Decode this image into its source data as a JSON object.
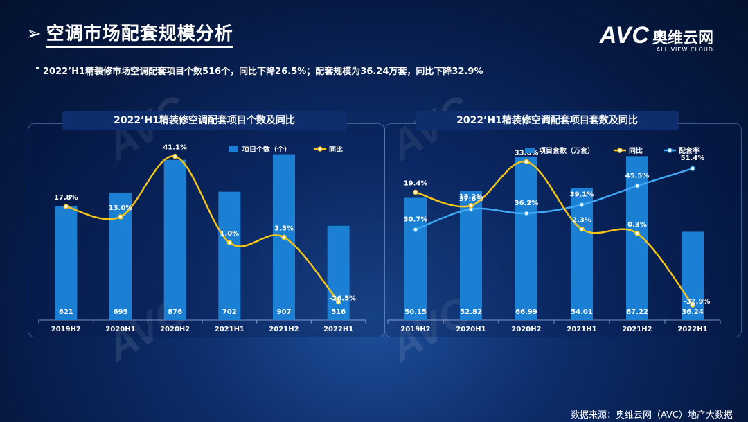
{
  "title": "空调市场配套规模分析",
  "title_arrow": "➢",
  "logo": {
    "mark": "AVC",
    "cn": "奥维云网",
    "en": "ALL VIEW CLOUD"
  },
  "summary": "2022’H1精装修市场空调配套项目个数516个，同比下降26.5%；配套规模为36.24万套，同比下降32.9%",
  "footer": "数据来源：奥维云网（AVC）地产大数据",
  "colors": {
    "bar": "#1b7fd3",
    "yoy": "#f5c518",
    "rate": "#3fa9f5"
  },
  "chart_data": [
    {
      "type": "bar",
      "title": "2022’H1精装修空调配套项目个数及同比",
      "categories": [
        "2019H2",
        "2020H1",
        "2020H2",
        "2021H1",
        "2021H2",
        "2022H1"
      ],
      "series": [
        {
          "name": "项目个数（个）",
          "kind": "bar",
          "values": [
            621,
            695,
            876,
            702,
            907,
            516
          ],
          "labels": [
            "621",
            "695",
            "876",
            "702",
            "907",
            "516"
          ]
        },
        {
          "name": "同比",
          "kind": "line",
          "values": [
            17.8,
            13.0,
            41.1,
            1.0,
            3.5,
            -26.5
          ],
          "labels": [
            "17.8%",
            "13.0%",
            "41.1%",
            "1.0%",
            "3.5%",
            "-26.5%"
          ]
        }
      ],
      "ylim_bar": [
        0,
        1000
      ],
      "ylim_line": [
        -35,
        50
      ]
    },
    {
      "type": "bar",
      "title": "2022’H1精装修空调配套项目套数及同比",
      "categories": [
        "2019H2",
        "2020H1",
        "2020H2",
        "2021H1",
        "2021H2",
        "2022H1"
      ],
      "series": [
        {
          "name": "项目套数（万套）",
          "kind": "bar",
          "values": [
            50.15,
            52.82,
            66.99,
            54.01,
            67.22,
            36.24
          ],
          "labels": [
            "50.15",
            "52.82",
            "66.99",
            "54.01",
            "67.22",
            "36.24"
          ]
        },
        {
          "name": "同比",
          "kind": "line",
          "values": [
            19.4,
            13.2,
            33.6,
            2.3,
            0.3,
            -32.9
          ],
          "labels": [
            "19.4%",
            "13.2%",
            "33.6%",
            "2.3%",
            "0.3%",
            "-32.9%"
          ]
        },
        {
          "name": "配套率",
          "kind": "line",
          "values": [
            30.7,
            37.6,
            36.2,
            39.1,
            45.5,
            51.4
          ],
          "labels": [
            "30.7%",
            "37.6%",
            "36.2%",
            "39.1%",
            "45.5%",
            "51.4%"
          ]
        }
      ],
      "ylim_bar": [
        0,
        75
      ],
      "ylim_line": [
        -40,
        45
      ],
      "ylim_rate": [
        0,
        62
      ]
    }
  ]
}
